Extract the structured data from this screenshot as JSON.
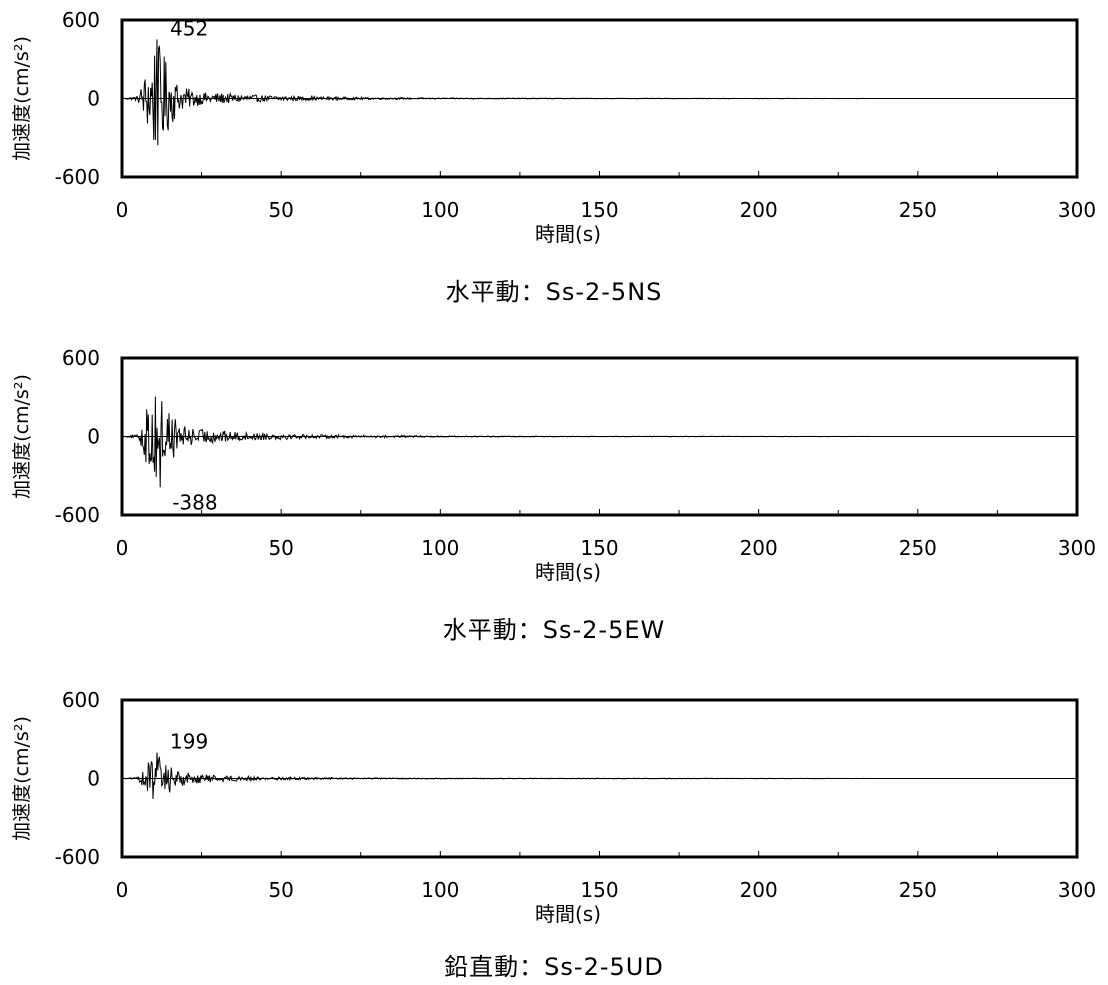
{
  "chart_data": [
    {
      "type": "line",
      "caption": "水平動：Ss-2-5NS",
      "xlabel": "時間(s)",
      "ylabel": "加速度(cm/s²)",
      "xlim": [
        0,
        300
      ],
      "ylim": [
        -600,
        600
      ],
      "xticks": [
        "0",
        "50",
        "100",
        "150",
        "200",
        "250",
        "300"
      ],
      "yticks": [
        "600",
        "0",
        "-600"
      ],
      "peak_label": "452",
      "peak": {
        "t": 11,
        "value": 452
      },
      "envelope": {
        "t": [
          0,
          5,
          8,
          10,
          12,
          14,
          18,
          25,
          30,
          40,
          50,
          60,
          80,
          100,
          150,
          235
        ],
        "amp": [
          0,
          20,
          250,
          450,
          420,
          300,
          100,
          50,
          45,
          30,
          22,
          15,
          8,
          5,
          2,
          1
        ]
      },
      "duration_s": 235
    },
    {
      "type": "line",
      "caption": "水平動：Ss-2-5EW",
      "xlabel": "時間(s)",
      "ylabel": "加速度(cm/s²)",
      "xlim": [
        0,
        300
      ],
      "ylim": [
        -600,
        600
      ],
      "xticks": [
        "0",
        "50",
        "100",
        "150",
        "200",
        "250",
        "300"
      ],
      "yticks": [
        "600",
        "0",
        "-600"
      ],
      "peak_label": "-388",
      "peak": {
        "t": 12,
        "value": -388
      },
      "envelope": {
        "t": [
          0,
          5,
          8,
          10,
          12,
          14,
          18,
          25,
          30,
          40,
          50,
          60,
          80,
          100,
          150,
          235
        ],
        "amp": [
          0,
          15,
          250,
          380,
          388,
          280,
          90,
          60,
          50,
          30,
          25,
          15,
          10,
          5,
          2,
          1
        ]
      },
      "duration_s": 235
    },
    {
      "type": "line",
      "caption": "鉛直動：Ss-2-5UD",
      "xlabel": "時間(s)",
      "ylabel": "加速度(cm/s²)",
      "xlim": [
        0,
        300
      ],
      "ylim": [
        -600,
        600
      ],
      "xticks": [
        "0",
        "50",
        "100",
        "150",
        "200",
        "250",
        "300"
      ],
      "yticks": [
        "600",
        "0",
        "-600"
      ],
      "peak_label": "199",
      "peak": {
        "t": 11,
        "value": 199
      },
      "envelope": {
        "t": [
          0,
          5,
          8,
          10,
          12,
          14,
          18,
          25,
          30,
          40,
          50,
          60,
          80,
          100,
          150,
          235
        ],
        "amp": [
          0,
          10,
          120,
          195,
          180,
          130,
          60,
          35,
          25,
          18,
          12,
          8,
          5,
          3,
          2,
          1
        ]
      },
      "duration_s": 235
    }
  ]
}
